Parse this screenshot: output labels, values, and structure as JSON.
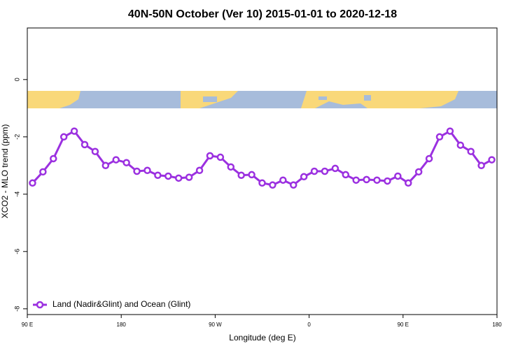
{
  "chart_data": {
    "type": "line",
    "title": "40N-50N October (Ver 10)   2015-01-01 to 2020-12-18",
    "xlabel": "Longitude (deg E)",
    "ylabel": "XCO2 - MLO trend (ppm)",
    "x": [
      95,
      105,
      115,
      125,
      135,
      145,
      155,
      165,
      175,
      185,
      195,
      205,
      215,
      225,
      235,
      245,
      255,
      265,
      275,
      285,
      295,
      305,
      315,
      325,
      335,
      345,
      355,
      365,
      375,
      385,
      395,
      405,
      415,
      425,
      435,
      445,
      455,
      465,
      475,
      485,
      495,
      505,
      515,
      525,
      535
    ],
    "series": [
      {
        "name": "Land (Nadir&Glint) and Ocean (Glint)",
        "color": "#9b30e0",
        "values": [
          -3.61,
          -3.22,
          -2.76,
          -2.0,
          -1.8,
          -2.27,
          -2.51,
          -3.0,
          -2.8,
          -2.9,
          -3.2,
          -3.17,
          -3.34,
          -3.37,
          -3.44,
          -3.41,
          -3.17,
          -2.66,
          -2.71,
          -3.05,
          -3.34,
          -3.32,
          -3.61,
          -3.68,
          -3.51,
          -3.68,
          -3.39,
          -3.2,
          -3.2,
          -3.1,
          -3.32,
          -3.51,
          -3.49,
          -3.51,
          -3.54,
          -3.37,
          -3.61,
          -3.22,
          -2.76,
          -2.0,
          -1.8,
          -2.29,
          -2.51,
          -3.0,
          -2.8
        ]
      }
    ],
    "xlim": [
      90,
      540
    ],
    "xticks": [
      {
        "value": 90,
        "label": "90 E"
      },
      180,
      {
        "value": 270,
        "label": "90 W"
      },
      {
        "value": 360,
        "label": "0"
      },
      {
        "value": 450,
        "label": "90 E"
      },
      {
        "value": 540,
        "label": "180"
      }
    ],
    "ylim": [
      -8.2,
      1.8
    ],
    "yticks": [
      -8,
      -6,
      -4,
      -2,
      0
    ],
    "legend": "bottom-left"
  }
}
